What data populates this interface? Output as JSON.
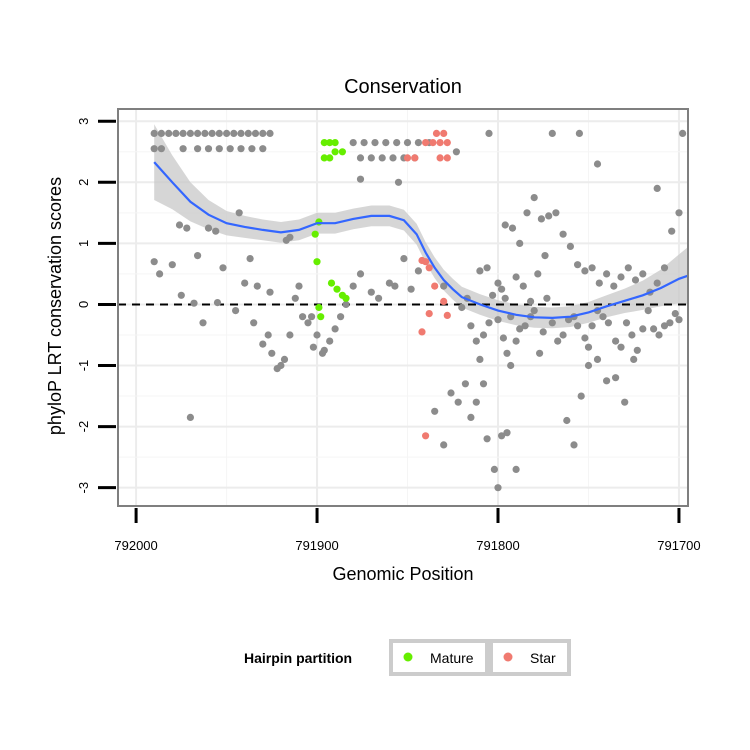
{
  "chart_data": {
    "type": "scatter",
    "title": "Conservation",
    "xlabel": "Genomic Position",
    "ylabel": "phyloP LRT conservation scores",
    "x_reversed": true,
    "xlim": [
      792010,
      791695
    ],
    "ylim": [
      -3.3,
      3.2
    ],
    "x_ticks": [
      792000,
      791900,
      791800,
      791700
    ],
    "y_ticks": [
      -3,
      -2,
      -1,
      0,
      1,
      2,
      3
    ],
    "grid": true,
    "reference_line": {
      "y": 0,
      "style": "dashed"
    },
    "legend": {
      "title": "Hairpin partition",
      "placement": "bottom",
      "entries": [
        {
          "name": "Mature",
          "color": "#66ee00"
        },
        {
          "name": "Star",
          "color": "#f07a70"
        }
      ]
    },
    "colors": {
      "other": "#8c8c8c",
      "Mature": "#66ee00",
      "Star": "#f07a70",
      "smooth": "#3366ff",
      "ribbon": "#c8c8c8"
    },
    "series": [
      {
        "name": "Other",
        "points": [
          [
            791990,
            2.8
          ],
          [
            791986,
            2.8
          ],
          [
            791982,
            2.8
          ],
          [
            791978,
            2.8
          ],
          [
            791974,
            2.8
          ],
          [
            791970,
            2.8
          ],
          [
            791966,
            2.8
          ],
          [
            791962,
            2.8
          ],
          [
            791958,
            2.8
          ],
          [
            791954,
            2.8
          ],
          [
            791950,
            2.8
          ],
          [
            791946,
            2.8
          ],
          [
            791942,
            2.8
          ],
          [
            791938,
            2.8
          ],
          [
            791934,
            2.8
          ],
          [
            791930,
            2.8
          ],
          [
            791926,
            2.8
          ],
          [
            791990,
            2.55
          ],
          [
            791986,
            2.55
          ],
          [
            791974,
            2.55
          ],
          [
            791966,
            2.55
          ],
          [
            791960,
            2.55
          ],
          [
            791954,
            2.55
          ],
          [
            791948,
            2.55
          ],
          [
            791942,
            2.55
          ],
          [
            791936,
            2.55
          ],
          [
            791930,
            2.55
          ],
          [
            791880,
            2.65
          ],
          [
            791874,
            2.65
          ],
          [
            791868,
            2.65
          ],
          [
            791862,
            2.65
          ],
          [
            791856,
            2.65
          ],
          [
            791850,
            2.65
          ],
          [
            791844,
            2.65
          ],
          [
            791838,
            2.65
          ],
          [
            791876,
            2.4
          ],
          [
            791870,
            2.4
          ],
          [
            791864,
            2.4
          ],
          [
            791858,
            2.4
          ],
          [
            791852,
            2.4
          ],
          [
            791846,
            2.4
          ],
          [
            791876,
            2.05
          ],
          [
            791855,
            2.0
          ],
          [
            791823,
            2.5
          ],
          [
            791805,
            2.8
          ],
          [
            791770,
            2.8
          ],
          [
            791755,
            2.8
          ],
          [
            791745,
            2.3
          ],
          [
            791712,
            1.9
          ],
          [
            791698,
            2.8
          ],
          [
            791990,
            0.7
          ],
          [
            791987,
            0.5
          ],
          [
            791980,
            0.65
          ],
          [
            791976,
            1.3
          ],
          [
            791972,
            1.25
          ],
          [
            791966,
            0.8
          ],
          [
            791960,
            1.25
          ],
          [
            791956,
            1.2
          ],
          [
            791952,
            0.6
          ],
          [
            791943,
            1.5
          ],
          [
            791937,
            0.75
          ],
          [
            791933,
            0.3
          ],
          [
            791926,
            0.2
          ],
          [
            791917,
            1.05
          ],
          [
            791915,
            1.1
          ],
          [
            791910,
            0.3
          ],
          [
            791975,
            0.15
          ],
          [
            791968,
            0.02
          ],
          [
            791963,
            -0.3
          ],
          [
            791955,
            0.03
          ],
          [
            791945,
            -0.1
          ],
          [
            791940,
            0.35
          ],
          [
            791935,
            -0.3
          ],
          [
            791930,
            -0.65
          ],
          [
            791927,
            -0.5
          ],
          [
            791925,
            -0.8
          ],
          [
            791922,
            -1.05
          ],
          [
            791918,
            -0.9
          ],
          [
            791915,
            -0.5
          ],
          [
            791912,
            0.1
          ],
          [
            791908,
            -0.2
          ],
          [
            791905,
            -0.3
          ],
          [
            791903,
            -0.2
          ],
          [
            791900,
            -0.5
          ],
          [
            791897,
            -0.8
          ],
          [
            791893,
            -0.6
          ],
          [
            791920,
            -1.0
          ],
          [
            791902,
            -0.7
          ],
          [
            791896,
            -0.75
          ],
          [
            791890,
            -0.4
          ],
          [
            791887,
            -0.2
          ],
          [
            791884,
            0.0
          ],
          [
            791880,
            0.3
          ],
          [
            791876,
            0.5
          ],
          [
            791870,
            0.2
          ],
          [
            791866,
            0.1
          ],
          [
            791860,
            0.35
          ],
          [
            791857,
            0.3
          ],
          [
            791852,
            0.75
          ],
          [
            791848,
            0.25
          ],
          [
            791844,
            0.55
          ],
          [
            791830,
            0.3
          ],
          [
            791820,
            -0.05
          ],
          [
            791817,
            0.1
          ],
          [
            791815,
            -0.35
          ],
          [
            791812,
            -0.6
          ],
          [
            791810,
            -0.9
          ],
          [
            791808,
            -0.5
          ],
          [
            791805,
            -0.3
          ],
          [
            791803,
            0.15
          ],
          [
            791800,
            -0.25
          ],
          [
            791797,
            -0.55
          ],
          [
            791795,
            -0.8
          ],
          [
            791793,
            -0.2
          ],
          [
            791790,
            -0.6
          ],
          [
            791788,
            -0.4
          ],
          [
            791785,
            -0.35
          ],
          [
            791782,
            -0.2
          ],
          [
            791780,
            -0.1
          ],
          [
            791777,
            -0.8
          ],
          [
            791775,
            -0.45
          ],
          [
            791773,
            0.1
          ],
          [
            791770,
            -0.3
          ],
          [
            791767,
            -0.6
          ],
          [
            791764,
            -0.5
          ],
          [
            791761,
            -0.25
          ],
          [
            791758,
            -0.2
          ],
          [
            791756,
            -0.35
          ],
          [
            791752,
            -0.55
          ],
          [
            791750,
            -0.7
          ],
          [
            791748,
            -0.35
          ],
          [
            791745,
            -0.1
          ],
          [
            791742,
            -0.2
          ],
          [
            791739,
            -0.3
          ],
          [
            791735,
            -0.6
          ],
          [
            791732,
            -0.7
          ],
          [
            791729,
            -0.3
          ],
          [
            791726,
            -0.5
          ],
          [
            791723,
            -0.75
          ],
          [
            791720,
            -0.4
          ],
          [
            791717,
            -0.1
          ],
          [
            791714,
            -0.4
          ],
          [
            791711,
            -0.5
          ],
          [
            791708,
            -0.35
          ],
          [
            791705,
            -0.3
          ],
          [
            791702,
            -0.15
          ],
          [
            791700,
            -0.25
          ],
          [
            791796,
            1.3
          ],
          [
            791792,
            1.25
          ],
          [
            791788,
            1.0
          ],
          [
            791784,
            1.5
          ],
          [
            791780,
            1.75
          ],
          [
            791776,
            1.4
          ],
          [
            791772,
            1.45
          ],
          [
            791768,
            1.5
          ],
          [
            791764,
            1.15
          ],
          [
            791760,
            0.95
          ],
          [
            791756,
            0.65
          ],
          [
            791752,
            0.55
          ],
          [
            791748,
            0.6
          ],
          [
            791744,
            0.35
          ],
          [
            791740,
            0.5
          ],
          [
            791736,
            0.3
          ],
          [
            791732,
            0.45
          ],
          [
            791728,
            0.6
          ],
          [
            791724,
            0.4
          ],
          [
            791720,
            0.5
          ],
          [
            791716,
            0.2
          ],
          [
            791712,
            0.35
          ],
          [
            791708,
            0.6
          ],
          [
            791704,
            1.2
          ],
          [
            791700,
            1.5
          ],
          [
            791810,
            0.55
          ],
          [
            791806,
            0.6
          ],
          [
            791800,
            0.35
          ],
          [
            791798,
            0.25
          ],
          [
            791796,
            0.1
          ],
          [
            791790,
            0.45
          ],
          [
            791786,
            0.3
          ],
          [
            791782,
            0.05
          ],
          [
            791778,
            0.5
          ],
          [
            791774,
            0.8
          ],
          [
            791835,
            -1.75
          ],
          [
            791830,
            -2.3
          ],
          [
            791826,
            -1.45
          ],
          [
            791822,
            -1.6
          ],
          [
            791818,
            -1.3
          ],
          [
            791815,
            -1.85
          ],
          [
            791812,
            -1.6
          ],
          [
            791808,
            -1.3
          ],
          [
            791806,
            -2.2
          ],
          [
            791802,
            -2.7
          ],
          [
            791800,
            -3.0
          ],
          [
            791798,
            -2.15
          ],
          [
            791795,
            -2.1
          ],
          [
            791793,
            -1.0
          ],
          [
            791790,
            -2.7
          ],
          [
            791762,
            -1.9
          ],
          [
            791758,
            -2.3
          ],
          [
            791754,
            -1.5
          ],
          [
            791750,
            -1.0
          ],
          [
            791745,
            -0.9
          ],
          [
            791740,
            -1.25
          ],
          [
            791735,
            -1.2
          ],
          [
            791730,
            -1.6
          ],
          [
            791725,
            -0.9
          ],
          [
            791970,
            -1.85
          ]
        ]
      },
      {
        "name": "Mature",
        "points": [
          [
            791896,
            2.65
          ],
          [
            791893,
            2.65
          ],
          [
            791890,
            2.65
          ],
          [
            791896,
            2.4
          ],
          [
            791893,
            2.4
          ],
          [
            791890,
            2.5
          ],
          [
            791886,
            2.5
          ],
          [
            791901,
            1.15
          ],
          [
            791899,
            1.35
          ],
          [
            791900,
            0.7
          ],
          [
            791892,
            0.35
          ],
          [
            791889,
            0.25
          ],
          [
            791886,
            0.15
          ],
          [
            791884,
            0.1
          ],
          [
            791899,
            -0.05
          ],
          [
            791898,
            -0.2
          ]
        ]
      },
      {
        "name": "Star",
        "points": [
          [
            791834,
            2.8
          ],
          [
            791830,
            2.8
          ],
          [
            791840,
            2.65
          ],
          [
            791836,
            2.65
          ],
          [
            791832,
            2.65
          ],
          [
            791828,
            2.65
          ],
          [
            791850,
            2.4
          ],
          [
            791846,
            2.4
          ],
          [
            791832,
            2.4
          ],
          [
            791828,
            2.4
          ],
          [
            791842,
            0.72
          ],
          [
            791840,
            0.7
          ],
          [
            791835,
            0.3
          ],
          [
            791830,
            0.05
          ],
          [
            791828,
            -0.18
          ],
          [
            791838,
            -0.15
          ],
          [
            791842,
            -0.45
          ],
          [
            791840,
            -2.15
          ],
          [
            791838,
            0.6
          ]
        ]
      }
    ],
    "smooth": [
      [
        791990,
        2.33
      ],
      [
        791980,
        2.0
      ],
      [
        791970,
        1.68
      ],
      [
        791960,
        1.47
      ],
      [
        791950,
        1.33
      ],
      [
        791940,
        1.27
      ],
      [
        791930,
        1.22
      ],
      [
        791920,
        1.18
      ],
      [
        791910,
        1.22
      ],
      [
        791900,
        1.33
      ],
      [
        791890,
        1.33
      ],
      [
        791880,
        1.4
      ],
      [
        791870,
        1.45
      ],
      [
        791860,
        1.45
      ],
      [
        791852,
        1.38
      ],
      [
        791845,
        1.15
      ],
      [
        791840,
        0.85
      ],
      [
        791835,
        0.6
      ],
      [
        791830,
        0.4
      ],
      [
        791825,
        0.25
      ],
      [
        791820,
        0.12
      ],
      [
        791810,
        0.0
      ],
      [
        791800,
        -0.1
      ],
      [
        791790,
        -0.17
      ],
      [
        791780,
        -0.21
      ],
      [
        791770,
        -0.22
      ],
      [
        791760,
        -0.2
      ],
      [
        791750,
        -0.13
      ],
      [
        791740,
        -0.03
      ],
      [
        791730,
        0.06
      ],
      [
        791720,
        0.15
      ],
      [
        791710,
        0.27
      ],
      [
        791700,
        0.42
      ],
      [
        791695,
        0.47
      ]
    ],
    "ribbon_halfwidth": [
      0.62,
      0.44,
      0.32,
      0.24,
      0.2,
      0.18,
      0.17,
      0.17,
      0.17,
      0.17,
      0.17,
      0.17,
      0.17,
      0.17,
      0.17,
      0.17,
      0.17,
      0.17,
      0.17,
      0.17,
      0.17,
      0.17,
      0.17,
      0.17,
      0.17,
      0.17,
      0.17,
      0.17,
      0.18,
      0.2,
      0.24,
      0.3,
      0.4,
      0.47
    ]
  }
}
